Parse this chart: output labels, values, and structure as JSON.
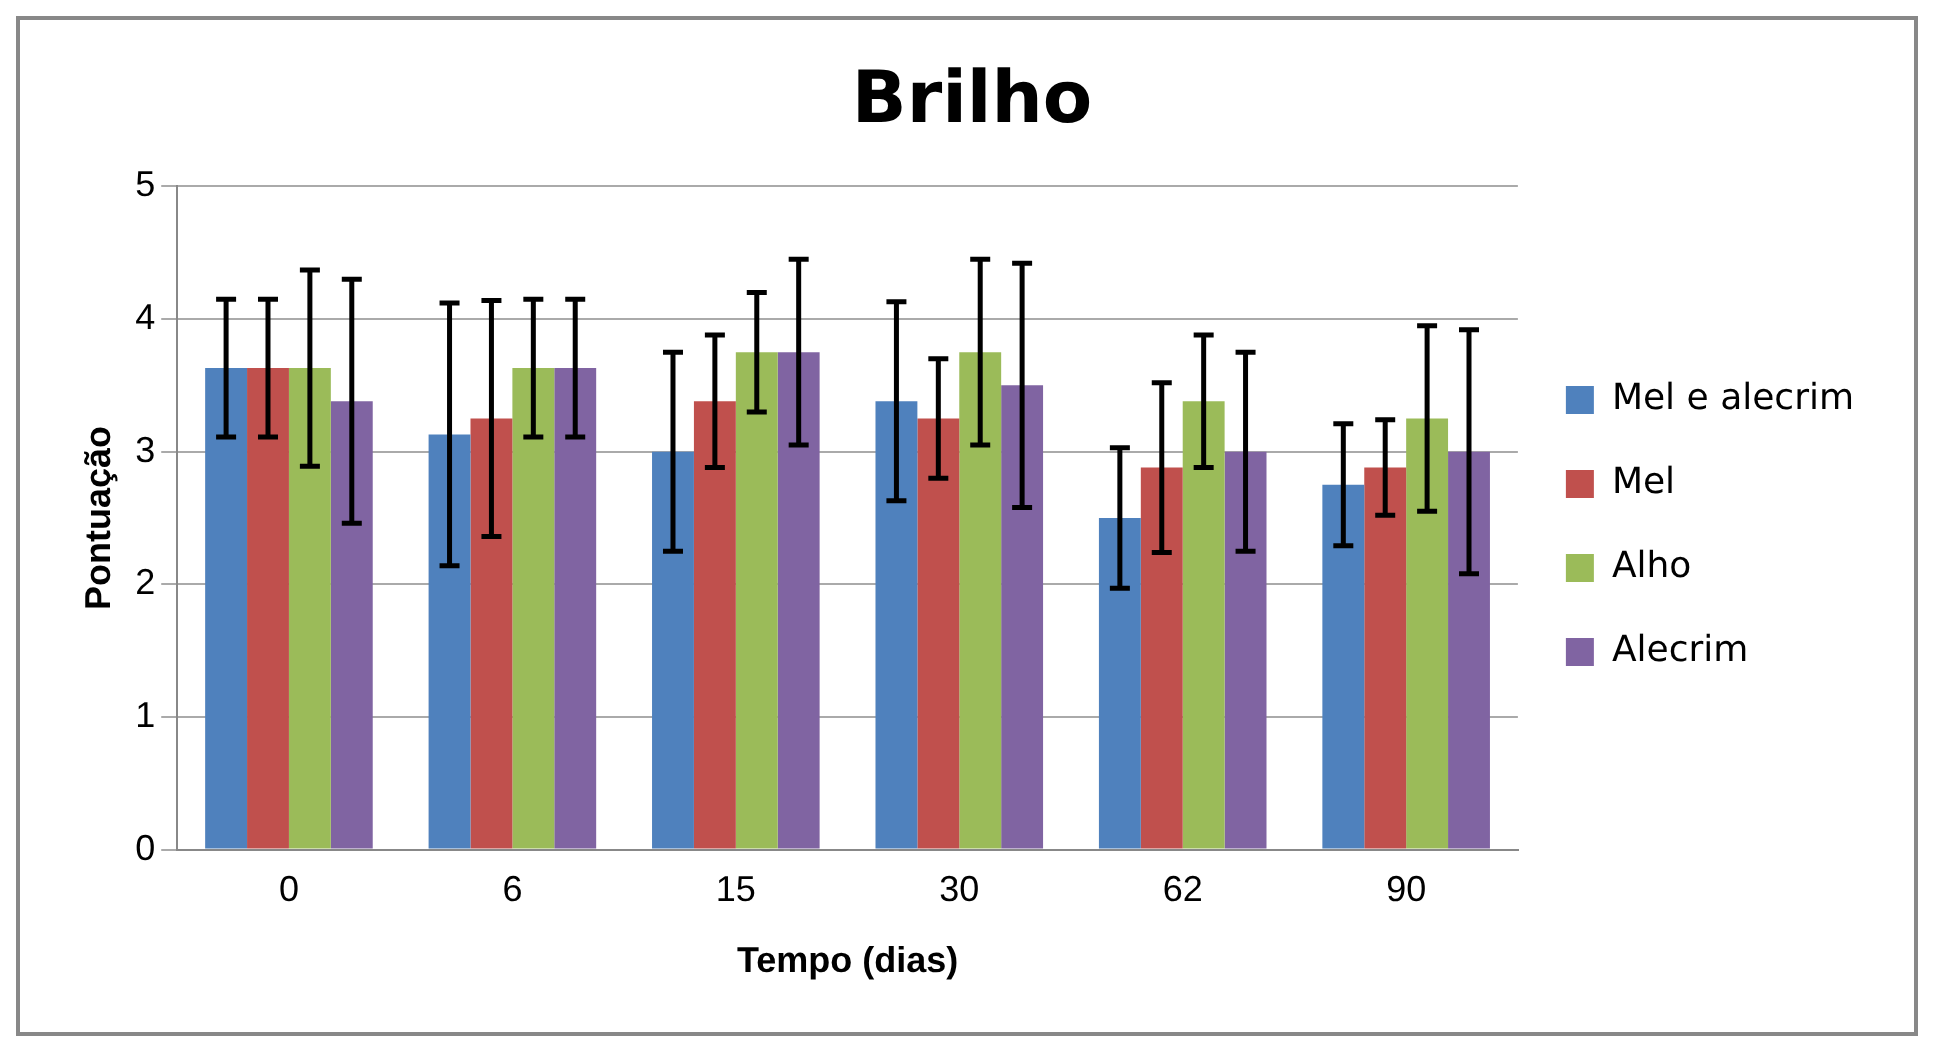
{
  "chart_data": {
    "type": "bar",
    "title": "Brilho",
    "xlabel": "Tempo (dias)",
    "ylabel": "Pontuação",
    "categories": [
      "0",
      "6",
      "15",
      "30",
      "62",
      "90"
    ],
    "series": [
      {
        "name": "Mel e alecrim",
        "color": "#4f81bd",
        "values": [
          3.63,
          3.13,
          3.0,
          3.38,
          2.5,
          2.75
        ],
        "errors": [
          0.52,
          0.99,
          0.75,
          0.75,
          0.53,
          0.46
        ]
      },
      {
        "name": "Mel",
        "color": "#c0504d",
        "values": [
          3.63,
          3.25,
          3.38,
          3.25,
          2.88,
          2.88
        ],
        "errors": [
          0.52,
          0.89,
          0.5,
          0.45,
          0.64,
          0.36
        ]
      },
      {
        "name": "Alho",
        "color": "#9bbb59",
        "values": [
          3.63,
          3.63,
          3.75,
          3.75,
          3.38,
          3.25
        ],
        "errors": [
          0.74,
          0.52,
          0.45,
          0.7,
          0.5,
          0.7
        ]
      },
      {
        "name": "Alecrim",
        "color": "#8064a2",
        "values": [
          3.38,
          3.63,
          3.75,
          3.5,
          3.0,
          3.0
        ],
        "errors": [
          0.92,
          0.52,
          0.7,
          0.92,
          0.75,
          0.92
        ]
      }
    ],
    "ylim": [
      0,
      5
    ],
    "yticks": [
      0,
      1,
      2,
      3,
      4,
      5
    ],
    "grid": "y",
    "legend": "right"
  }
}
